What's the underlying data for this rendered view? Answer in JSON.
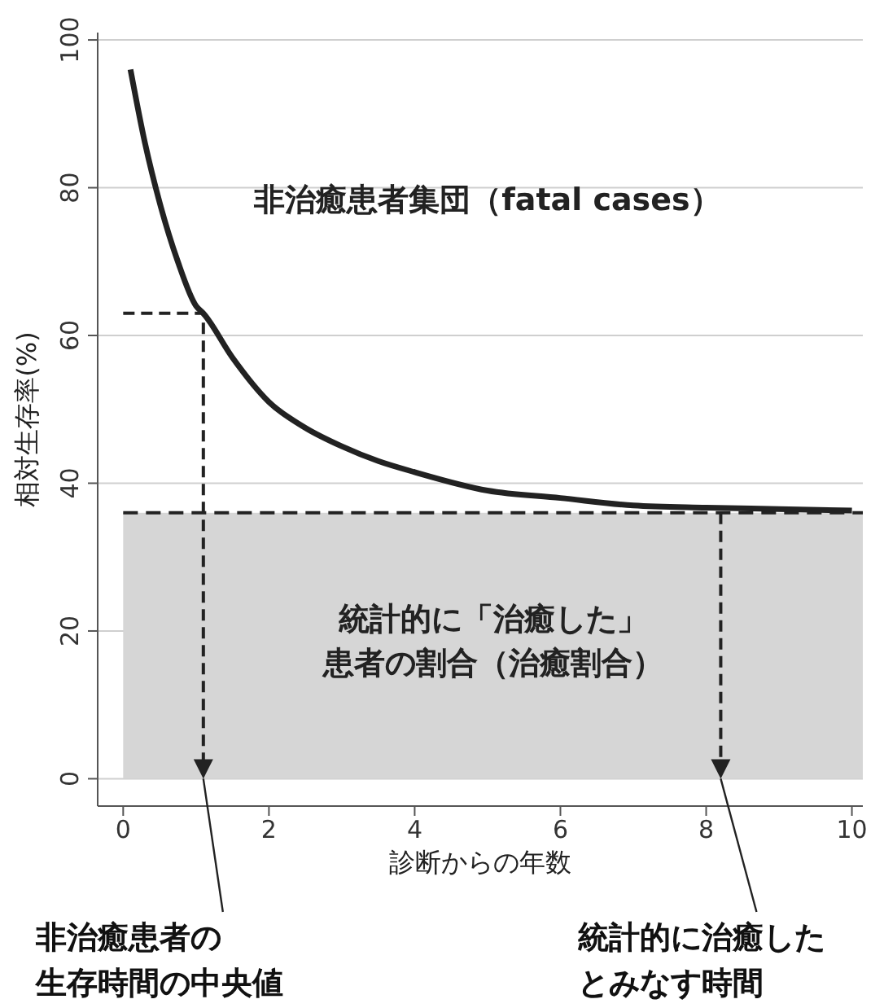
{
  "chart_data": {
    "type": "line",
    "xlabel": "診断からの年数",
    "ylabel": "相対生存率(%)",
    "x": [
      0.1,
      0.3,
      0.5,
      0.75,
      1,
      1.1,
      1.5,
      2,
      2.5,
      3,
      3.5,
      4,
      5,
      6,
      7,
      8,
      9,
      10
    ],
    "values": [
      96,
      86,
      78,
      70,
      64,
      63,
      57,
      51,
      47.5,
      45,
      43,
      41.5,
      39,
      38,
      37,
      36.7,
      36.5,
      36.3
    ],
    "color": "#222222",
    "xlim": [
      -0.35,
      10.15
    ],
    "ylim": [
      -3.7,
      101
    ],
    "xticks": [
      0,
      2,
      4,
      6,
      8,
      10
    ],
    "yticks": [
      0,
      20,
      40,
      60,
      80,
      100
    ],
    "grid": "y",
    "ref_lines": [
      {
        "axis": "y",
        "value": 36,
        "line_style": "dashed",
        "color": "#222222"
      }
    ],
    "bands": [
      {
        "axis": "y",
        "from": 0,
        "to": 36,
        "label": "統計的に「治癒した」患者の割合（治癒割合）",
        "color": "#d6d6d6"
      }
    ],
    "annotations": [
      "非治癒患者集団（fatal cases）",
      {
        "text": "非治癒患者の生存時間の中央値",
        "x": 1.1,
        "y": 0
      },
      {
        "text": "統計的に治癒したとみなす時間",
        "x": 8.2,
        "y": 0
      }
    ]
  }
}
